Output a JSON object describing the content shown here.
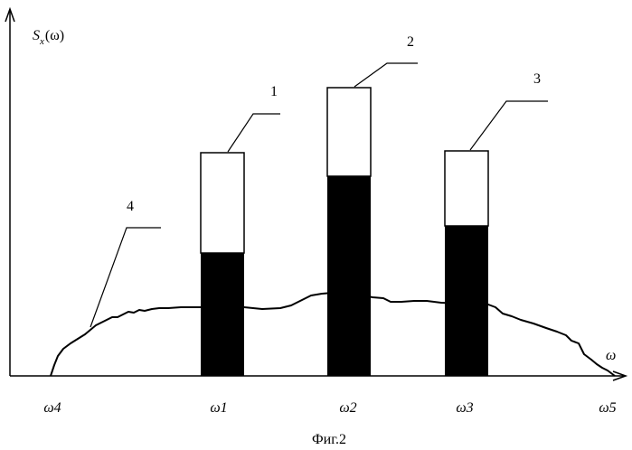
{
  "figure": {
    "caption": "Фиг.2",
    "y_axis_label": {
      "main": "S",
      "sub": "x",
      "arg": "(ω)"
    },
    "x_axis_label": "ω",
    "ticks": [
      "ω4",
      "ω1",
      "ω2",
      "ω3",
      "ω5"
    ],
    "bar_callouts": [
      "1",
      "2",
      "3"
    ],
    "curve_callout": "4",
    "colors": {
      "ink": "#000000",
      "paper": "#ffffff"
    }
  }
}
